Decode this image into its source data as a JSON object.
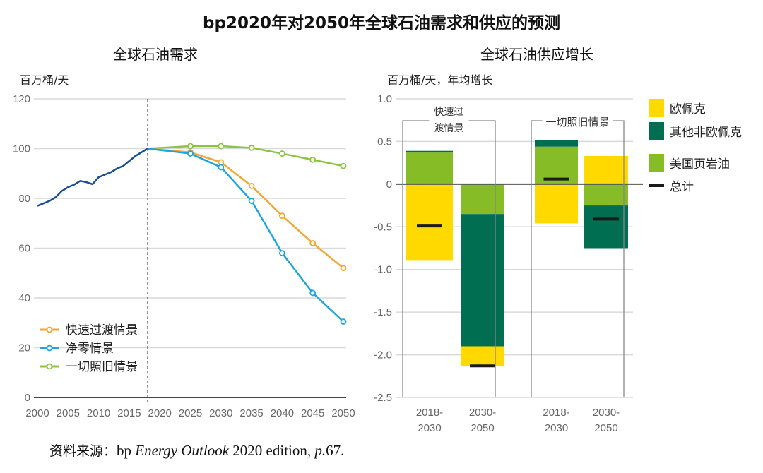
{
  "title": "bp2020年对2050年全球石油需求和供应的预测",
  "source": {
    "prefix": "资料来源：",
    "text1": "bp ",
    "italic1": "Energy Outlook",
    "text2": " 2020 edition, ",
    "italic2": "p.",
    "text3": "67."
  },
  "chart_data": [
    {
      "type": "line",
      "title": "全球石油需求",
      "ylabel": "百万桶/天",
      "ylim": [
        0,
        120
      ],
      "yticks": [
        "0",
        "20",
        "40",
        "60",
        "80",
        "100",
        "120"
      ],
      "xticks": [
        "2000",
        "2005",
        "2010",
        "2015",
        "2020",
        "2025",
        "2030",
        "2035",
        "2040",
        "2045",
        "2050"
      ],
      "xlim": [
        2000,
        2050
      ],
      "divider_year": 2018,
      "history": {
        "x": [
          2000,
          2001,
          2002,
          2003,
          2004,
          2005,
          2006,
          2007,
          2008,
          2009,
          2010,
          2011,
          2012,
          2013,
          2014,
          2015,
          2016,
          2017,
          2018
        ],
        "y": [
          77,
          78,
          79,
          80.5,
          83,
          84.5,
          85.5,
          87,
          86.5,
          85.7,
          88.5,
          89.5,
          90.5,
          92,
          93,
          95,
          97,
          98.5,
          100
        ],
        "color": "#1a4e96"
      },
      "series": [
        {
          "name": "快速过渡情景",
          "color": "#f5a531",
          "x": [
            2018,
            2025,
            2030,
            2035,
            2040,
            2045,
            2050
          ],
          "y": [
            100,
            98.5,
            94.5,
            85,
            73,
            62,
            52
          ]
        },
        {
          "name": "净零情景",
          "color": "#1ea4e0",
          "x": [
            2018,
            2025,
            2030,
            2035,
            2040,
            2045,
            2050
          ],
          "y": [
            100,
            98,
            92.5,
            79,
            58,
            42,
            30.5
          ]
        },
        {
          "name": "一切照旧情景",
          "color": "#8bc43f",
          "x": [
            2018,
            2025,
            2030,
            2035,
            2040,
            2045,
            2050
          ],
          "y": [
            100,
            101,
            101,
            100.3,
            98,
            95.5,
            93
          ]
        }
      ],
      "legend": "bottom-left"
    },
    {
      "type": "bar",
      "stacked": true,
      "title": "全球石油供应增长",
      "ylabel": "百万桶/天，年均增长",
      "ylim": [
        -2.5,
        1.0
      ],
      "yticks": [
        "1.0",
        "0.5",
        "0",
        "-0.5",
        "-1.0",
        "-1.5",
        "-2.0",
        "-2.5"
      ],
      "groups": [
        {
          "name_lines": [
            "快速过",
            "渡情景"
          ],
          "categories": [
            [
              "2018-",
              "2030"
            ],
            [
              "2030-",
              "2050"
            ]
          ]
        },
        {
          "name_lines": [
            "一切照旧情景"
          ],
          "categories": [
            [
              "2018-",
              "2030"
            ],
            [
              "2030-",
              "2050"
            ]
          ]
        }
      ],
      "series": [
        {
          "name": "欧佩克",
          "color": "#ffd900",
          "values": [
            -0.89,
            -0.23,
            -0.46,
            0.33
          ]
        },
        {
          "name": "其他非欧佩克",
          "color": "#006e51",
          "values": [
            0.02,
            -1.55,
            0.08,
            -0.5
          ]
        },
        {
          "name": "美国页岩油",
          "color": "#86bc25",
          "values": [
            0.37,
            -0.35,
            0.44,
            -0.25
          ]
        }
      ],
      "stack_order": [
        "美国页岩油",
        "其他非欧佩克",
        "欧佩克"
      ],
      "totals": {
        "name": "总计",
        "color": "#1a1a1a",
        "values": [
          -0.49,
          -2.13,
          0.06,
          -0.41
        ]
      },
      "legend": "right"
    }
  ]
}
